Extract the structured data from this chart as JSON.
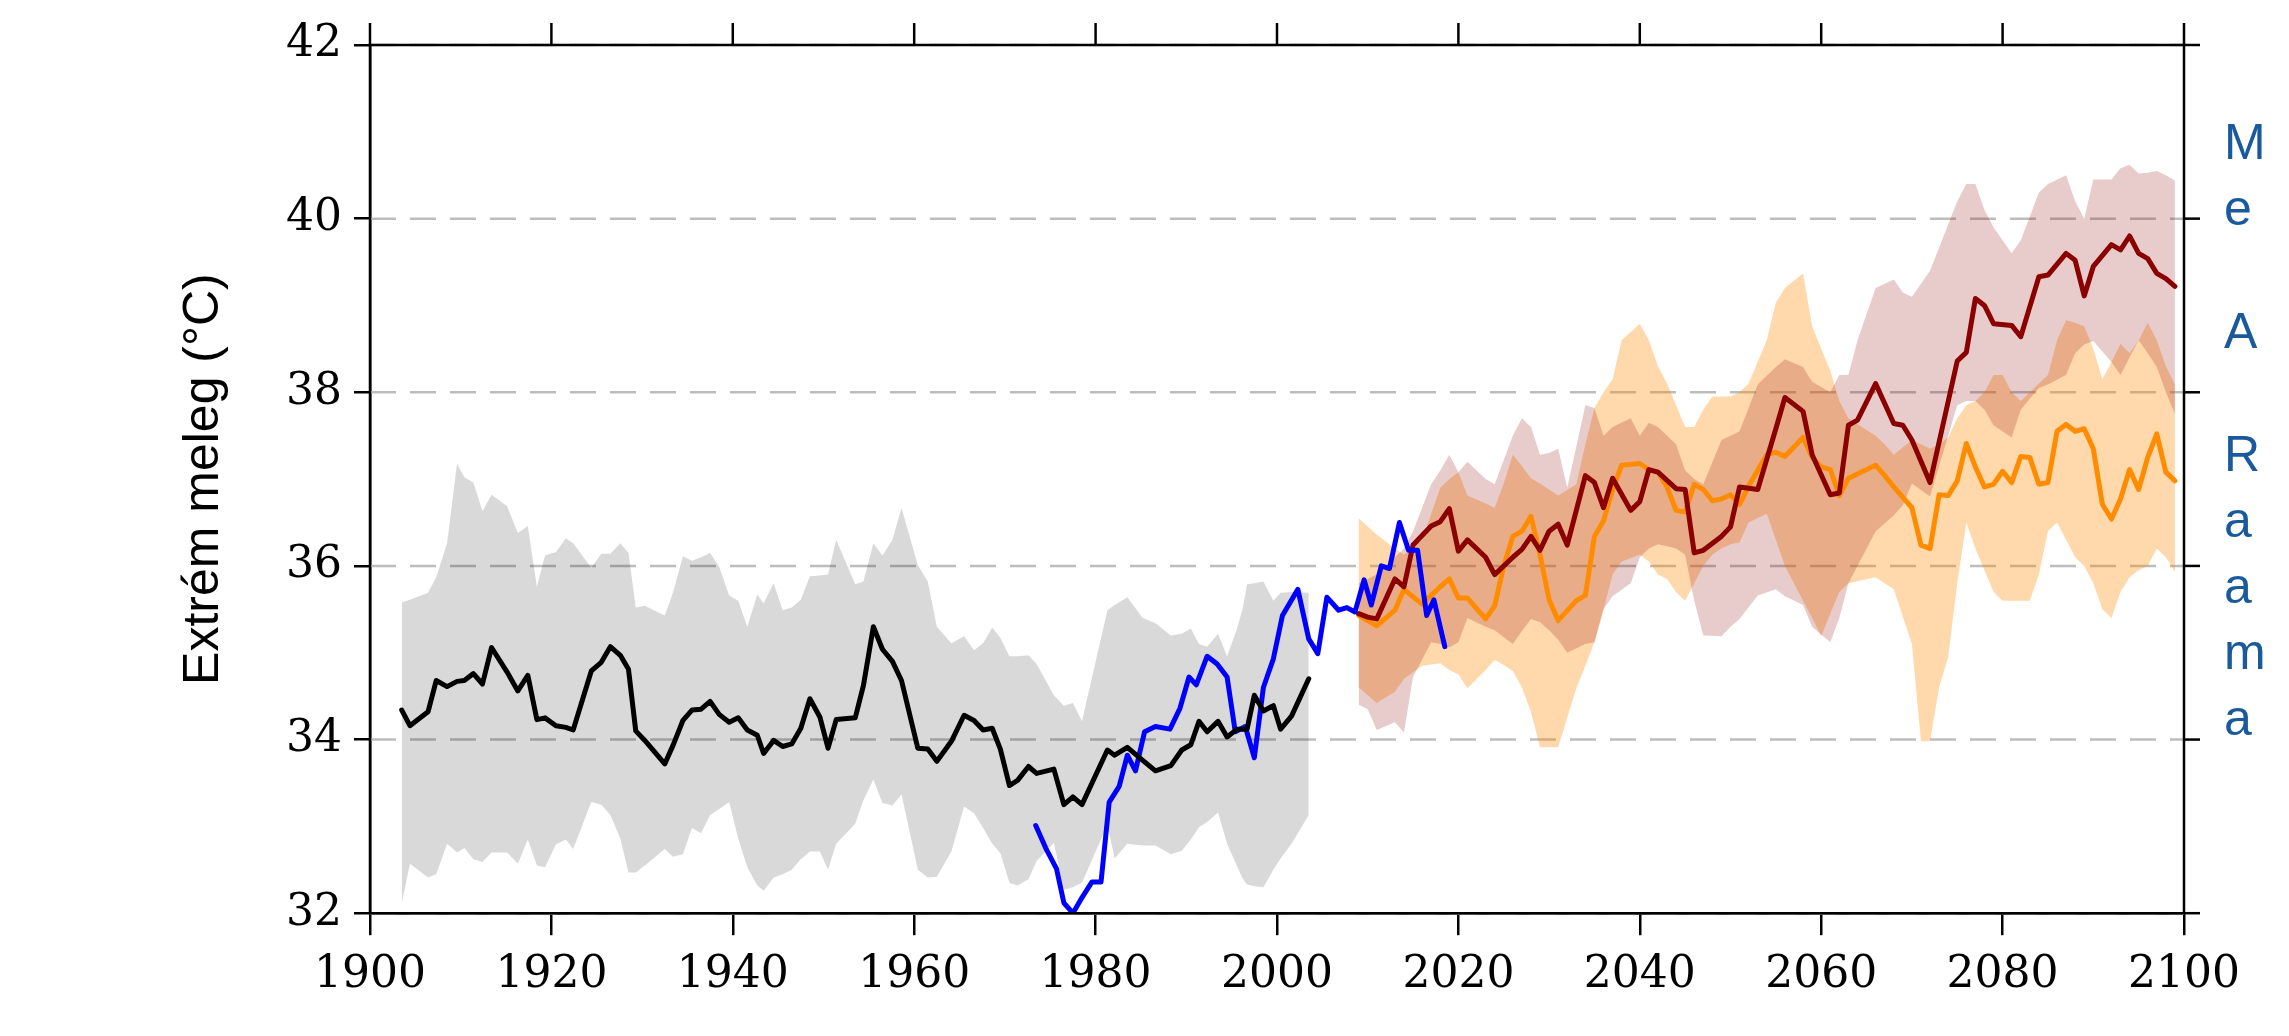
{
  "chart_data": {
    "type": "line",
    "ylabel": "Extrém meleg (°C)",
    "xlim": [
      1900,
      2100
    ],
    "xticks": [
      1900,
      1920,
      1940,
      1960,
      1980,
      2000,
      2020,
      2040,
      2060,
      2080,
      2100
    ],
    "ylim": [
      32,
      42
    ],
    "yticks": [
      32,
      34,
      36,
      38,
      40,
      42
    ],
    "grid": "y",
    "legend": false,
    "marker": "none",
    "line_style": "solid",
    "annotations": [
      "M\ne",
      "A",
      "R\na\na\nm\na"
    ],
    "series": [
      {
        "color": "#000000",
        "x": [
          1903.5,
          1904.4,
          1906.4,
          1907.3,
          1908.5,
          1909.6,
          1910.4,
          1911.4,
          1912.4,
          1913.4,
          1915.1,
          1916.3,
          1917.4,
          1918.4,
          1919.3,
          1920.5,
          1921.6,
          1922.4,
          1924.4,
          1925.5,
          1926.5,
          1927.6,
          1928.5,
          1929.3,
          1930.3,
          1932.5,
          1933.4,
          1934.5,
          1935.5,
          1936.5,
          1937.5,
          1938.5,
          1939.6,
          1940.6,
          1941.6,
          1942.7,
          1943.4,
          1944.5,
          1945.5,
          1946.5,
          1947.5,
          1948.5,
          1949.6,
          1950.5,
          1951.4,
          1953.5,
          1954.4,
          1955.5,
          1956.5,
          1957.6,
          1958.6,
          1960.4,
          1961.5,
          1962.5,
          1964.1,
          1965.5,
          1966.6,
          1967.6,
          1968.6,
          1969.5,
          1970.5,
          1971.4,
          1972.6,
          1973.5,
          1975.4,
          1976.5,
          1977.5,
          1978.5,
          1981.3,
          1982.1,
          1983.5,
          1985.2,
          1986.6,
          1988.3,
          1989.5,
          1990.5,
          1991.4,
          1992.3,
          1993.5,
          1994.5,
          1995.6,
          1996.2,
          1996.7,
          1997.5,
          1998.5,
          1999.6,
          2000.4,
          2001.6,
          2003.5
        ],
        "values": [
          34.34,
          34.16,
          34.32,
          34.68,
          34.61,
          34.67,
          34.68,
          34.76,
          34.64,
          35.06,
          34.78,
          34.56,
          34.74,
          34.23,
          34.25,
          34.16,
          34.14,
          34.11,
          34.79,
          34.89,
          35.07,
          34.97,
          34.81,
          34.1,
          33.99,
          33.72,
          33.93,
          34.22,
          34.34,
          34.35,
          34.44,
          34.29,
          34.2,
          34.25,
          34.11,
          34.05,
          33.84,
          33.99,
          33.92,
          33.95,
          34.13,
          34.47,
          34.26,
          33.9,
          34.23,
          34.25,
          34.62,
          35.3,
          35.04,
          34.9,
          34.68,
          33.9,
          33.89,
          33.75,
          33.98,
          34.28,
          34.22,
          34.11,
          34.13,
          33.89,
          33.47,
          33.53,
          33.69,
          33.61,
          33.66,
          33.25,
          33.34,
          33.25,
          33.88,
          33.82,
          33.91,
          33.76,
          33.64,
          33.7,
          33.88,
          33.94,
          34.21,
          34.09,
          34.21,
          34.03,
          34.12,
          34.12,
          34.12,
          34.51,
          34.33,
          34.39,
          34.12,
          34.27,
          34.7
        ],
        "lower": [
          32.11,
          32.57,
          32.41,
          32.45,
          32.8,
          32.7,
          32.75,
          32.62,
          32.59,
          32.7,
          32.7,
          32.57,
          32.85,
          32.55,
          32.53,
          32.79,
          32.85,
          32.74,
          33.28,
          33.25,
          33.13,
          32.86,
          32.47,
          32.47,
          32.55,
          32.74,
          32.65,
          32.68,
          32.98,
          32.92,
          33.13,
          33.2,
          33.28,
          32.86,
          32.53,
          32.32,
          32.26,
          32.41,
          32.45,
          32.5,
          32.62,
          32.71,
          32.71,
          32.5,
          32.8,
          33.03,
          33.3,
          33.54,
          33.27,
          33.24,
          33.37,
          32.5,
          32.41,
          32.42,
          32.71,
          33.23,
          33.15,
          32.98,
          32.8,
          32.69,
          32.35,
          32.32,
          32.39,
          32.6,
          32.81,
          32.27,
          32.3,
          32.35,
          33.02,
          32.63,
          32.8,
          32.78,
          32.78,
          32.68,
          32.72,
          32.85,
          32.99,
          33.05,
          33.16,
          32.8,
          32.54,
          32.4,
          32.33,
          32.31,
          32.3,
          32.5,
          32.63,
          32.8,
          33.13
        ],
        "upper": [
          35.58,
          35.61,
          35.69,
          35.87,
          36.26,
          37.18,
          37.02,
          36.96,
          36.63,
          36.82,
          36.69,
          36.38,
          36.46,
          35.76,
          36.12,
          36.16,
          36.32,
          36.26,
          35.98,
          36.14,
          36.14,
          36.26,
          36.15,
          35.52,
          35.54,
          35.43,
          35.69,
          36.11,
          36.06,
          36.1,
          36.15,
          35.99,
          35.66,
          35.6,
          35.3,
          35.67,
          35.57,
          35.8,
          35.49,
          35.52,
          35.61,
          35.88,
          35.89,
          35.9,
          36.3,
          35.79,
          35.82,
          36.26,
          36.12,
          36.3,
          36.67,
          36.01,
          35.82,
          35.3,
          35.11,
          35.19,
          35.03,
          35.11,
          35.29,
          35.17,
          34.96,
          34.96,
          34.97,
          34.87,
          34.51,
          34.39,
          34.42,
          34.21,
          35.49,
          35.55,
          35.64,
          35.4,
          35.34,
          35.2,
          35.22,
          35.28,
          35.1,
          35.07,
          35.22,
          34.96,
          35.28,
          35.5,
          35.79,
          35.8,
          35.82,
          35.6,
          35.69,
          35.7,
          35.69
        ]
      },
      {
        "color": "#0000ff",
        "x": [
          1973.4,
          1974.5,
          1975.7,
          1976.5,
          1977.5,
          1978.5,
          1979.6,
          1980.6,
          1981.5,
          1982.6,
          1983.5,
          1984.4,
          1985.4,
          1986.6,
          1988.2,
          1989.3,
          1990.3,
          1991.1,
          1992.3,
          1993.4,
          1994.5,
          1995.4,
          1996.5,
          1997.5,
          1998.5,
          1999.6,
          2000.6,
          2002.3,
          2003.5,
          2004.5,
          2005.5,
          2006.8,
          2007.7,
          2008.6,
          2009.6,
          2010.4,
          2011.5,
          2012.4,
          2013.5,
          2014.5,
          2015.5,
          2016.5,
          2017.3,
          2018.5
        ],
        "values": [
          33.01,
          32.75,
          32.51,
          32.12,
          32.0,
          32.18,
          32.36,
          32.36,
          33.28,
          33.46,
          33.82,
          33.64,
          34.09,
          34.15,
          34.12,
          34.36,
          34.72,
          34.63,
          34.96,
          34.87,
          34.72,
          34.09,
          34.15,
          33.79,
          34.6,
          34.93,
          35.43,
          35.73,
          35.16,
          34.99,
          35.64,
          35.49,
          35.52,
          35.47,
          35.84,
          35.55,
          36.0,
          35.97,
          36.5,
          36.18,
          36.18,
          35.43,
          35.61,
          35.07
        ]
      },
      {
        "color": "#8b0000",
        "x": [
          2009,
          2010,
          2011,
          2013,
          2014,
          2015,
          2017,
          2018,
          2019,
          2020,
          2021,
          2023,
          2024,
          2026,
          2027,
          2028,
          2029,
          2030,
          2031,
          2032,
          2034,
          2035,
          2036,
          2037,
          2039,
          2040,
          2041,
          2042,
          2044,
          2045,
          2046,
          2047,
          2049,
          2050,
          2051,
          2053,
          2055,
          2056,
          2058,
          2059,
          2061,
          2062,
          2063,
          2064,
          2066,
          2068,
          2069,
          2070,
          2072,
          2075,
          2076,
          2077,
          2078,
          2079,
          2081,
          2082,
          2084,
          2085,
          2087,
          2088,
          2089,
          2090,
          2092,
          2093,
          2094,
          2095,
          2096,
          2097,
          2098,
          2099
        ],
        "values": [
          35.45,
          35.41,
          35.39,
          35.85,
          35.76,
          36.24,
          36.46,
          36.51,
          36.66,
          36.17,
          36.3,
          36.1,
          35.9,
          36.1,
          36.19,
          36.34,
          36.18,
          36.4,
          36.48,
          36.24,
          37.04,
          36.96,
          36.67,
          37.01,
          36.64,
          36.74,
          37.11,
          37.08,
          36.89,
          36.88,
          36.15,
          36.18,
          36.34,
          36.45,
          36.91,
          36.88,
          37.58,
          37.94,
          37.78,
          37.28,
          36.82,
          36.84,
          37.62,
          37.68,
          38.1,
          37.64,
          37.62,
          37.45,
          36.96,
          38.36,
          38.46,
          39.08,
          39.0,
          38.79,
          38.77,
          38.64,
          39.33,
          39.35,
          39.6,
          39.52,
          39.11,
          39.45,
          39.7,
          39.64,
          39.8,
          39.6,
          39.54,
          39.37,
          39.31,
          39.22
        ],
        "lower": [
          34.4,
          34.35,
          34.11,
          34.2,
          34.08,
          34.72,
          35.12,
          35.1,
          35.06,
          35.12,
          35.4,
          35.3,
          35.26,
          35.1,
          35.25,
          35.39,
          35.35,
          35.26,
          35.15,
          35.0,
          35.1,
          35.12,
          35.5,
          35.65,
          35.8,
          36.1,
          36.2,
          36.25,
          36.2,
          36.13,
          35.6,
          35.2,
          35.19,
          35.3,
          35.39,
          35.66,
          35.73,
          35.65,
          35.55,
          35.3,
          35.12,
          35.4,
          35.8,
          36.0,
          36.4,
          36.58,
          36.7,
          36.95,
          36.8,
          37.85,
          37.9,
          37.9,
          37.8,
          37.62,
          37.48,
          37.8,
          38.05,
          38.09,
          38.2,
          38.45,
          38.55,
          38.59,
          38.35,
          38.2,
          38.4,
          38.6,
          38.45,
          38.29,
          38.0,
          37.75
        ],
        "upper": [
          35.8,
          35.85,
          35.9,
          36.1,
          36.2,
          36.4,
          36.94,
          37.1,
          37.28,
          37.08,
          37.2,
          37.0,
          36.94,
          37.5,
          37.7,
          37.6,
          37.28,
          37.3,
          37.35,
          36.9,
          37.85,
          37.82,
          37.5,
          37.6,
          37.7,
          37.5,
          37.65,
          37.6,
          37.4,
          37.1,
          37.0,
          36.94,
          37.45,
          37.5,
          37.55,
          38.09,
          38.29,
          38.38,
          38.29,
          38.12,
          38.0,
          38.2,
          38.2,
          38.6,
          39.2,
          39.3,
          39.15,
          39.1,
          39.4,
          40.2,
          40.4,
          40.4,
          40.1,
          39.9,
          39.6,
          39.75,
          40.3,
          40.4,
          40.5,
          40.2,
          40.0,
          40.45,
          40.45,
          40.58,
          40.62,
          40.52,
          40.53,
          40.55,
          40.5,
          40.44
        ]
      },
      {
        "color": "#ff8c00",
        "x": [
          2009,
          2011,
          2013,
          2014,
          2016,
          2018,
          2019,
          2020,
          2021,
          2023,
          2024,
          2025,
          2026,
          2027,
          2028,
          2029,
          2030,
          2031,
          2033,
          2034,
          2035,
          2036,
          2037,
          2038,
          2040,
          2041,
          2042,
          2043,
          2044,
          2045,
          2046,
          2047,
          2048,
          2049,
          2050,
          2051,
          2052,
          2054,
          2055,
          2056,
          2058,
          2059,
          2060,
          2061,
          2062,
          2063,
          2066,
          2067,
          2068,
          2070,
          2071,
          2072,
          2073,
          2074,
          2075,
          2076,
          2077,
          2078,
          2079,
          2080,
          2081,
          2082,
          2083,
          2084,
          2085,
          2086,
          2087,
          2088,
          2089,
          2090,
          2091,
          2092,
          2093,
          2094,
          2095,
          2096,
          2097,
          2098,
          2099
        ],
        "values": [
          35.43,
          35.31,
          35.49,
          35.73,
          35.56,
          35.76,
          35.85,
          35.63,
          35.63,
          35.39,
          35.54,
          36.0,
          36.34,
          36.4,
          36.57,
          36.13,
          35.61,
          35.37,
          35.6,
          35.66,
          36.34,
          36.52,
          36.88,
          37.16,
          37.18,
          37.11,
          37.08,
          36.91,
          36.64,
          36.62,
          36.94,
          36.88,
          36.75,
          36.77,
          36.82,
          36.71,
          36.92,
          37.28,
          37.31,
          37.26,
          37.48,
          37.25,
          37.14,
          37.11,
          36.81,
          37.01,
          37.16,
          37.04,
          36.91,
          36.67,
          36.24,
          36.2,
          36.82,
          36.81,
          36.98,
          37.41,
          37.14,
          36.91,
          36.94,
          37.09,
          36.96,
          37.26,
          37.25,
          36.94,
          36.96,
          37.55,
          37.63,
          37.55,
          37.58,
          37.35,
          36.71,
          36.54,
          36.77,
          37.11,
          36.88,
          37.25,
          37.52,
          37.08,
          36.98
        ],
        "lower": [
          34.6,
          34.42,
          34.55,
          34.7,
          34.85,
          34.88,
          34.8,
          34.75,
          34.59,
          34.8,
          34.92,
          34.86,
          34.79,
          34.6,
          34.32,
          33.91,
          33.91,
          33.91,
          34.59,
          34.85,
          35.12,
          35.5,
          35.9,
          36.05,
          36.13,
          36.05,
          35.9,
          35.85,
          35.7,
          35.6,
          35.8,
          36.0,
          36.13,
          36.2,
          36.25,
          36.27,
          36.5,
          36.6,
          36.3,
          36.0,
          35.6,
          35.4,
          35.19,
          35.45,
          35.7,
          35.8,
          35.87,
          35.8,
          35.73,
          35.1,
          33.98,
          33.98,
          34.6,
          34.95,
          35.8,
          36.5,
          36.2,
          35.95,
          35.7,
          35.6,
          35.6,
          35.6,
          35.6,
          35.9,
          36.4,
          36.5,
          36.3,
          36.1,
          36.0,
          35.8,
          35.5,
          35.4,
          35.7,
          35.87,
          35.95,
          36.0,
          36.2,
          36.1,
          35.93
        ],
        "upper": [
          36.55,
          36.36,
          36.2,
          36.13,
          36.3,
          36.9,
          37.0,
          37.08,
          36.81,
          36.72,
          36.67,
          36.95,
          37.28,
          37.15,
          37.01,
          36.95,
          36.88,
          36.81,
          36.94,
          37.4,
          37.82,
          38.0,
          38.15,
          38.6,
          38.79,
          38.6,
          38.3,
          38.1,
          37.85,
          37.6,
          37.6,
          37.8,
          37.95,
          37.95,
          37.95,
          38.0,
          38.1,
          38.6,
          39.03,
          39.2,
          39.37,
          38.76,
          38.5,
          38.25,
          37.9,
          37.7,
          37.5,
          37.4,
          37.28,
          37.45,
          37.4,
          37.35,
          37.4,
          37.48,
          37.7,
          37.85,
          37.9,
          38.0,
          38.2,
          38.2,
          38.0,
          37.9,
          38.0,
          38.1,
          38.2,
          38.6,
          38.83,
          38.8,
          38.76,
          38.5,
          38.15,
          38.35,
          38.56,
          38.45,
          38.6,
          38.8,
          38.6,
          38.3,
          38.09
        ]
      }
    ]
  }
}
